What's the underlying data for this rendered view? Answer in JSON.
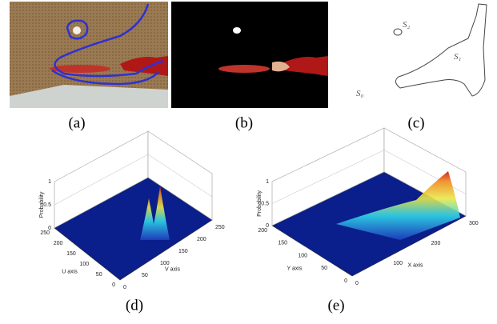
{
  "images": [
    {
      "caption": "(a)"
    },
    {
      "caption": "(b)"
    },
    {
      "caption": "(c)",
      "region_labels": [
        "S₀",
        "S₁",
        "S₂"
      ]
    }
  ],
  "plots": [
    {
      "caption": "(d)",
      "z_label": "Probability",
      "z_ticks": [
        0,
        0.5,
        1
      ],
      "left_axis_label": "U axis",
      "left_ticks": [
        250,
        200,
        150,
        100,
        50,
        0
      ],
      "right_axis_label": "V axis",
      "right_ticks": [
        0,
        50,
        100,
        150,
        200,
        250
      ]
    },
    {
      "caption": "(e)",
      "z_label": "Probability",
      "z_ticks": [
        0,
        0.5,
        1
      ],
      "left_axis_label": "Y axis",
      "left_ticks": [
        200,
        150,
        100,
        50,
        0
      ],
      "right_axis_label": "X axis",
      "right_ticks": [
        0,
        100,
        200,
        300
      ]
    }
  ]
}
